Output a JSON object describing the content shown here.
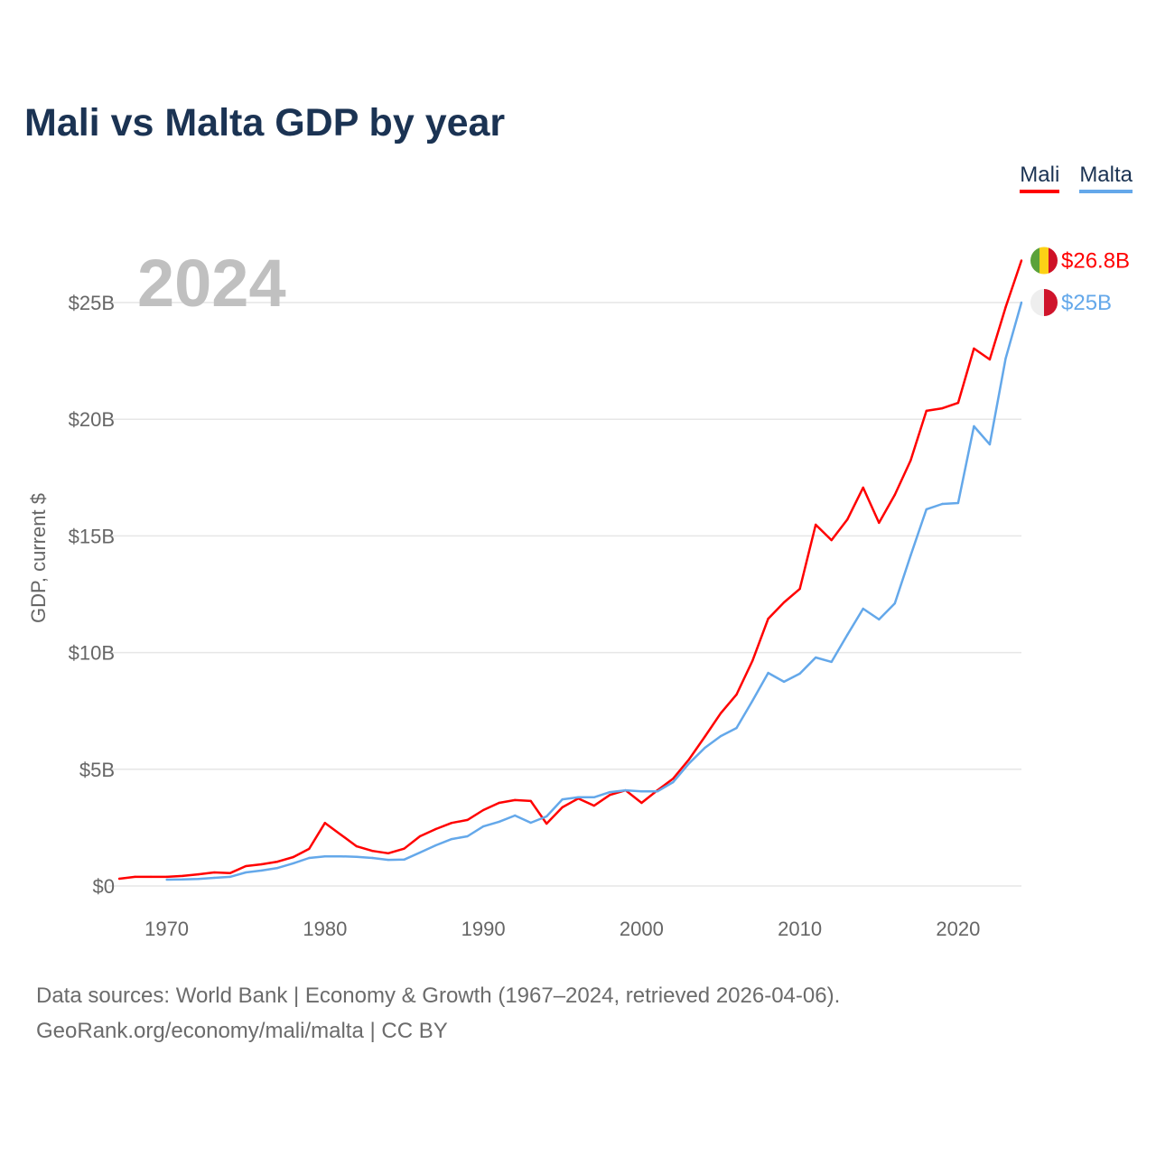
{
  "chart_data": {
    "type": "line",
    "title": "Mali vs Malta GDP by year",
    "ylabel": "GDP, current $",
    "xlabel": "",
    "year_watermark": "2024",
    "xlim": [
      1967,
      2024
    ],
    "ylim": [
      0,
      27
    ],
    "grid": true,
    "legend_placement": "top-right",
    "y_ticks": [
      {
        "v": 0,
        "label": "$0"
      },
      {
        "v": 5,
        "label": "$5B"
      },
      {
        "v": 10,
        "label": "$10B"
      },
      {
        "v": 15,
        "label": "$15B"
      },
      {
        "v": 20,
        "label": "$20B"
      },
      {
        "v": 25,
        "label": "$25B"
      }
    ],
    "x_ticks": [
      {
        "v": 1970,
        "label": "1970"
      },
      {
        "v": 1980,
        "label": "1980"
      },
      {
        "v": 1990,
        "label": "1990"
      },
      {
        "v": 2000,
        "label": "2000"
      },
      {
        "v": 2010,
        "label": "2010"
      },
      {
        "v": 2020,
        "label": "2020"
      }
    ],
    "series": [
      {
        "name": "Mali",
        "color": "#ff0000",
        "start_year": 1967,
        "end_label": "$26.8B",
        "flag": [
          "#5ba23a",
          "#fcd116",
          "#ce1126"
        ],
        "values": [
          0.31,
          0.39,
          0.39,
          0.39,
          0.43,
          0.5,
          0.58,
          0.55,
          0.85,
          0.93,
          1.04,
          1.24,
          1.59,
          2.7,
          2.2,
          1.7,
          1.5,
          1.4,
          1.6,
          2.13,
          2.44,
          2.7,
          2.83,
          3.25,
          3.56,
          3.68,
          3.64,
          2.67,
          3.37,
          3.75,
          3.44,
          3.9,
          4.1,
          3.56,
          4.1,
          4.6,
          5.42,
          6.4,
          7.4,
          8.2,
          9.64,
          11.45,
          12.15,
          12.73,
          15.48,
          14.82,
          15.7,
          17.07,
          15.56,
          16.76,
          18.23,
          20.36,
          20.47,
          20.7,
          23.03,
          22.56,
          24.8,
          26.8
        ]
      },
      {
        "name": "Malta",
        "color": "#64a8ea",
        "start_year": 1970,
        "end_label": "$25B",
        "flag": [
          "#eeeeee",
          "#cf142b"
        ],
        "values": [
          0.27,
          0.28,
          0.3,
          0.35,
          0.39,
          0.58,
          0.66,
          0.77,
          0.97,
          1.2,
          1.27,
          1.27,
          1.25,
          1.2,
          1.12,
          1.13,
          1.43,
          1.74,
          2.01,
          2.13,
          2.55,
          2.75,
          3.02,
          2.71,
          2.98,
          3.71,
          3.8,
          3.8,
          4.02,
          4.1,
          4.05,
          4.05,
          4.45,
          5.25,
          5.92,
          6.42,
          6.77,
          7.93,
          9.13,
          8.75,
          9.1,
          9.79,
          9.6,
          10.76,
          11.88,
          11.42,
          12.11,
          14.16,
          16.14,
          16.37,
          16.41,
          19.7,
          18.92,
          22.6,
          25.0
        ]
      }
    ]
  },
  "footer": {
    "line1": "Data sources: World Bank | Economy & Growth (1967–2024, retrieved 2026-04-06).",
    "line2": "GeoRank.org/economy/mali/malta | CC BY"
  }
}
